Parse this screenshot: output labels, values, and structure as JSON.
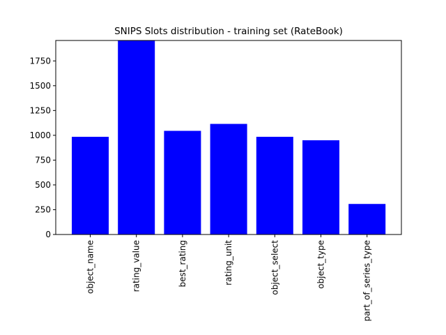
{
  "chart_data": {
    "type": "bar",
    "title": "SNIPS Slots distribution - training set (RateBook)",
    "xlabel": "",
    "ylabel": "",
    "categories": [
      "object_name",
      "rating_value",
      "best_rating",
      "rating_unit",
      "object_select",
      "object_type",
      "part_of_series_type"
    ],
    "values": [
      985,
      1956,
      1045,
      1115,
      985,
      950,
      308
    ],
    "ylim": [
      0,
      1956
    ],
    "yticks": [
      0,
      250,
      500,
      750,
      1000,
      1250,
      1500,
      1750
    ],
    "bar_color": "#0000ff",
    "grid": false,
    "legend": "none"
  }
}
